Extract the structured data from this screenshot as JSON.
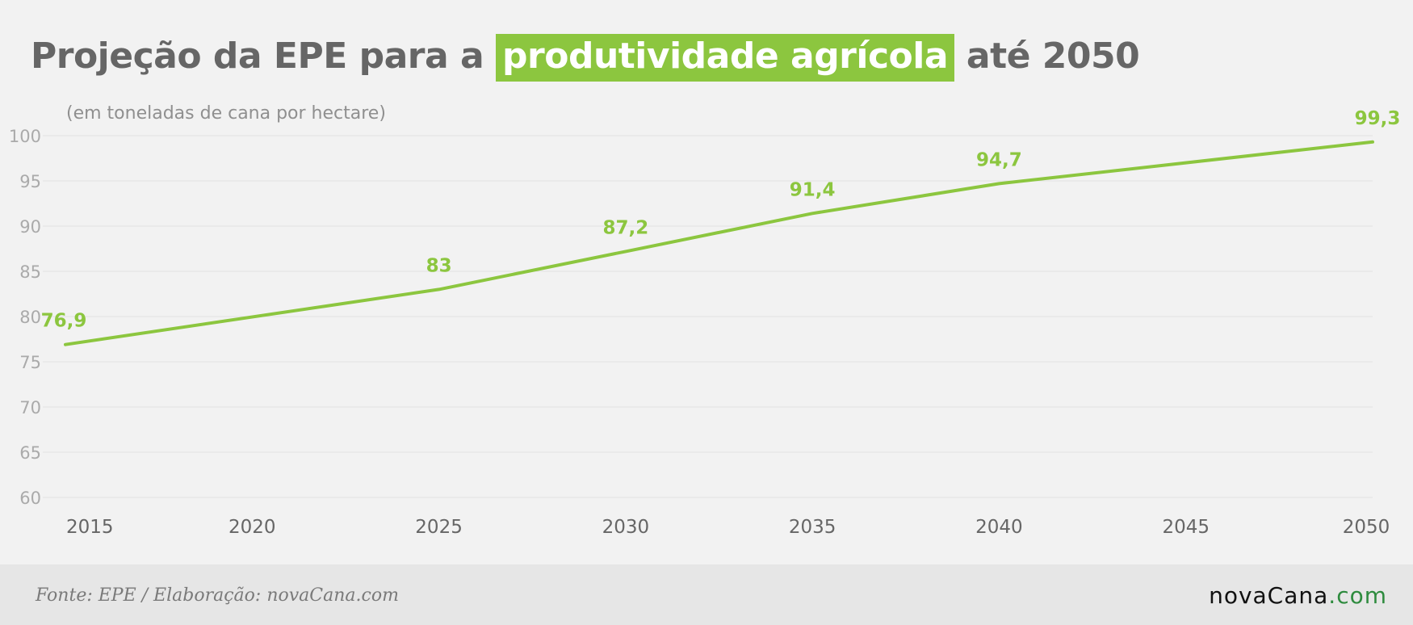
{
  "header": {
    "title_pre": "Projeção da EPE para a",
    "title_highlight": "produtividade agrícola",
    "title_post": "até 2050",
    "subtitle": "(em toneladas de cana por hectare)"
  },
  "footer": {
    "source": "Fonte: EPE / Elaboração: novaCana.com",
    "brand_name": "novaCana",
    "brand_suffix": ".com"
  },
  "colors": {
    "line": "#8cc63f",
    "highlight_bg": "#8cc63f",
    "grid": "#e3e3e3",
    "y_tick": "#aaaaaa",
    "x_tick": "#666666",
    "brand_dot": "#2e8b3e"
  },
  "chart_data": {
    "type": "line",
    "title": "Projeção da EPE para a produtividade agrícola até 2050",
    "ylabel": "(em toneladas de cana por hectare)",
    "xlabel": "",
    "x_ticks": [
      "2015",
      "2020",
      "2025",
      "2030",
      "2035",
      "2040",
      "2045",
      "2050"
    ],
    "xlim": [
      2015,
      2050
    ],
    "y_ticks": [
      60,
      65,
      70,
      75,
      80,
      85,
      90,
      95,
      100
    ],
    "ylim": [
      60,
      100
    ],
    "grid": true,
    "series": [
      {
        "x": [
          2015,
          2025,
          2030,
          2035,
          2040,
          2050
        ],
        "values": [
          76.9,
          83,
          87.2,
          91.4,
          94.7,
          99.3
        ],
        "labels": [
          "76,9",
          "83",
          "87,2",
          "91,4",
          "94,7",
          "99,3"
        ]
      }
    ]
  }
}
